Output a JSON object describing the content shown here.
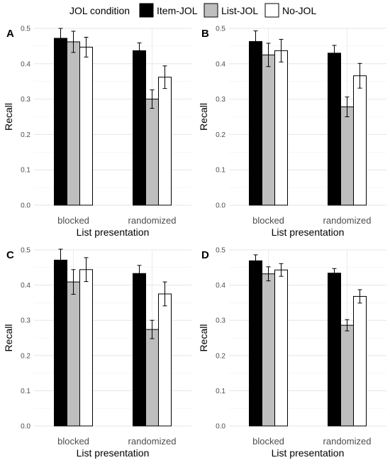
{
  "legend": {
    "title": "JOL condition",
    "entries": [
      {
        "label": "Item-JOL",
        "color": "#000000"
      },
      {
        "label": "List-JOL",
        "color": "#bebebe"
      },
      {
        "label": "No-JOL",
        "color": "#ffffff"
      }
    ]
  },
  "chart_data": [
    {
      "type": "bar",
      "panel": "A",
      "categories": [
        "blocked",
        "randomized"
      ],
      "xlabel": "List presentation",
      "ylabel": "Recall",
      "ylim": [
        0,
        0.5
      ],
      "yticks": [
        0.0,
        0.1,
        0.2,
        0.3,
        0.4,
        0.5
      ],
      "series": [
        {
          "name": "Item-JOL",
          "values": [
            0.472,
            0.437
          ],
          "errors": [
            0.028,
            0.022
          ]
        },
        {
          "name": "List-JOL",
          "values": [
            0.462,
            0.3
          ],
          "errors": [
            0.03,
            0.026
          ]
        },
        {
          "name": "No-JOL",
          "values": [
            0.447,
            0.362
          ],
          "errors": [
            0.028,
            0.032
          ]
        }
      ]
    },
    {
      "type": "bar",
      "panel": "B",
      "categories": [
        "blocked",
        "randomized"
      ],
      "xlabel": "List presentation",
      "ylabel": "Recall",
      "ylim": [
        0,
        0.5
      ],
      "yticks": [
        0.0,
        0.1,
        0.2,
        0.3,
        0.4,
        0.5
      ],
      "series": [
        {
          "name": "Item-JOL",
          "values": [
            0.463,
            0.43
          ],
          "errors": [
            0.03,
            0.022
          ]
        },
        {
          "name": "List-JOL",
          "values": [
            0.425,
            0.278
          ],
          "errors": [
            0.033,
            0.028
          ]
        },
        {
          "name": "No-JOL",
          "values": [
            0.437,
            0.366
          ],
          "errors": [
            0.032,
            0.035
          ]
        }
      ]
    },
    {
      "type": "bar",
      "panel": "C",
      "categories": [
        "blocked",
        "randomized"
      ],
      "xlabel": "List presentation",
      "ylabel": "Recall",
      "ylim": [
        0,
        0.5
      ],
      "yticks": [
        0.0,
        0.1,
        0.2,
        0.3,
        0.4,
        0.5
      ],
      "series": [
        {
          "name": "Item-JOL",
          "values": [
            0.471,
            0.433
          ],
          "errors": [
            0.031,
            0.023
          ]
        },
        {
          "name": "List-JOL",
          "values": [
            0.409,
            0.274
          ],
          "errors": [
            0.035,
            0.026
          ]
        },
        {
          "name": "No-JOL",
          "values": [
            0.444,
            0.375
          ],
          "errors": [
            0.034,
            0.034
          ]
        }
      ]
    },
    {
      "type": "bar",
      "panel": "D",
      "categories": [
        "blocked",
        "randomized"
      ],
      "xlabel": "List presentation",
      "ylabel": "Recall",
      "ylim": [
        0,
        0.5
      ],
      "yticks": [
        0.0,
        0.1,
        0.2,
        0.3,
        0.4,
        0.5
      ],
      "series": [
        {
          "name": "Item-JOL",
          "values": [
            0.469,
            0.434
          ],
          "errors": [
            0.017,
            0.013
          ]
        },
        {
          "name": "List-JOL",
          "values": [
            0.432,
            0.286
          ],
          "errors": [
            0.02,
            0.016
          ]
        },
        {
          "name": "No-JOL",
          "values": [
            0.443,
            0.368
          ],
          "errors": [
            0.018,
            0.019
          ]
        }
      ]
    }
  ]
}
